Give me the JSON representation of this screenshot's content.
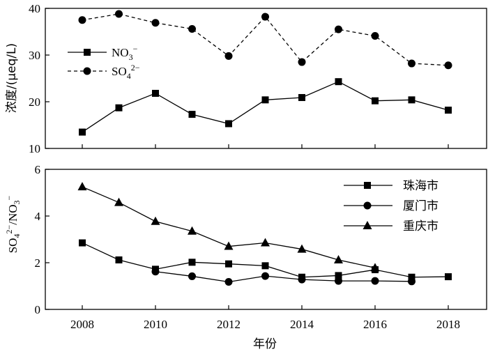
{
  "chart_data": [
    {
      "type": "line",
      "ylabel": "浓度/(μeq/L)",
      "ylim": [
        10,
        40
      ],
      "yticks": [
        "10",
        "20",
        "30",
        "40"
      ],
      "grid": false,
      "legend_placement": "top-left",
      "series": [
        {
          "name": "NO3−",
          "name_main": "NO",
          "name_sub": "3",
          "name_sup": "−",
          "marker": "square",
          "dashed": false,
          "x": [
            2008,
            2009,
            2010,
            2011,
            2012,
            2013,
            2014,
            2015,
            2016,
            2017,
            2018
          ],
          "values": [
            13.5,
            18.7,
            21.8,
            17.3,
            15.3,
            20.4,
            20.9,
            24.3,
            20.2,
            20.4,
            18.2
          ]
        },
        {
          "name": "SO42−",
          "name_main": "SO",
          "name_sub": "4",
          "name_sup": "2−",
          "marker": "circle",
          "dashed": true,
          "x": [
            2008,
            2009,
            2010,
            2011,
            2012,
            2013,
            2014,
            2015,
            2016,
            2017,
            2018
          ],
          "values": [
            37.5,
            38.8,
            36.9,
            35.6,
            29.8,
            38.2,
            28.5,
            35.5,
            34.1,
            28.2,
            27.8
          ]
        }
      ]
    },
    {
      "type": "line",
      "ylabel": "SO42−/NO3−",
      "ylabel_parts": {
        "a": "SO",
        "a_sub": "4",
        "a_sup": "2−",
        "b": "/NO",
        "b_sub": "3",
        "b_sup": "−"
      },
      "xlabel": "年份",
      "xlim": [
        2007,
        2019
      ],
      "xticks": [
        "2008",
        "2010",
        "2012",
        "2014",
        "2016",
        "2018"
      ],
      "ylim": [
        0,
        6
      ],
      "yticks": [
        "0",
        "2",
        "4",
        "6"
      ],
      "grid": false,
      "legend_placement": "top-right",
      "series": [
        {
          "name": "珠海市",
          "marker": "square",
          "x": [
            2008,
            2009,
            2010,
            2011,
            2012,
            2013,
            2014,
            2015,
            2016,
            2017,
            2018
          ],
          "values": [
            2.85,
            2.12,
            1.72,
            2.02,
            1.95,
            1.87,
            1.38,
            1.45,
            1.7,
            1.38,
            1.4
          ]
        },
        {
          "name": "厦门市",
          "marker": "circle",
          "x": [
            2010,
            2011,
            2012,
            2013,
            2014,
            2015,
            2016,
            2017
          ],
          "values": [
            1.62,
            1.42,
            1.18,
            1.43,
            1.28,
            1.22,
            1.22,
            1.2
          ]
        },
        {
          "name": "重庆市",
          "marker": "triangle",
          "x": [
            2008,
            2009,
            2010,
            2011,
            2012,
            2013,
            2014,
            2015,
            2016
          ],
          "values": [
            5.25,
            4.58,
            3.77,
            3.35,
            2.7,
            2.85,
            2.58,
            2.12,
            1.78
          ]
        }
      ]
    }
  ]
}
